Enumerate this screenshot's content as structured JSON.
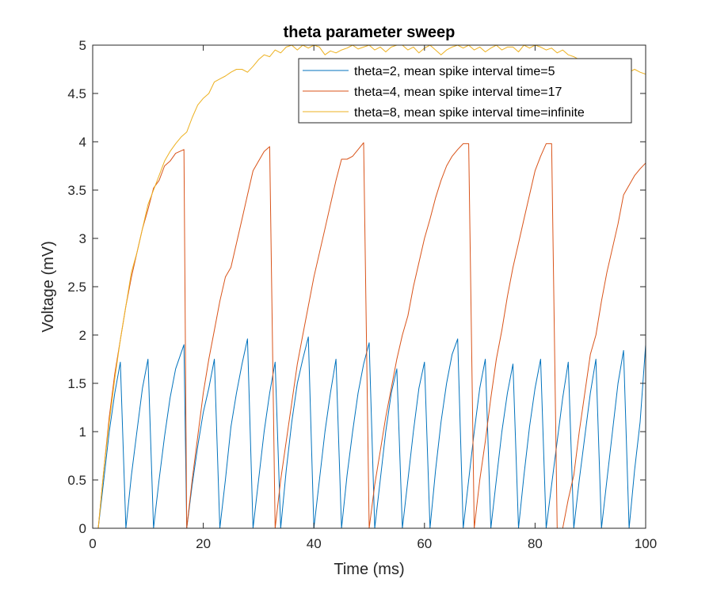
{
  "chart_data": {
    "type": "line",
    "title": "theta parameter sweep",
    "xlabel": "Time (ms)",
    "ylabel": "Voltage (mV)",
    "xlim": [
      0,
      100
    ],
    "ylim": [
      0,
      5
    ],
    "xticks": [
      0,
      20,
      40,
      60,
      80,
      100
    ],
    "yticks": [
      0,
      0.5,
      1,
      1.5,
      2,
      2.5,
      3,
      3.5,
      4,
      4.5,
      5
    ],
    "grid": false,
    "legend_position": "top-right",
    "series": [
      {
        "name": "theta=2, mean spike interval time=5",
        "color": "#0072BD",
        "points": [
          [
            1,
            0
          ],
          [
            2,
            0.5
          ],
          [
            3,
            1.0
          ],
          [
            4,
            1.4
          ],
          [
            5,
            1.72
          ],
          [
            6,
            0
          ],
          [
            7,
            0.55
          ],
          [
            8,
            1.0
          ],
          [
            9,
            1.45
          ],
          [
            10,
            1.75
          ],
          [
            11,
            0
          ],
          [
            12,
            0.5
          ],
          [
            13,
            0.95
          ],
          [
            14,
            1.35
          ],
          [
            15,
            1.65
          ],
          [
            16.5,
            1.9
          ],
          [
            17,
            0
          ],
          [
            18,
            0.45
          ],
          [
            19,
            0.85
          ],
          [
            20,
            1.2
          ],
          [
            21,
            1.45
          ],
          [
            22,
            1.75
          ],
          [
            23,
            0
          ],
          [
            24,
            0.5
          ],
          [
            25,
            1.05
          ],
          [
            26,
            1.4
          ],
          [
            27,
            1.7
          ],
          [
            28,
            1.96
          ],
          [
            29,
            0
          ],
          [
            30,
            0.5
          ],
          [
            31,
            1.0
          ],
          [
            32,
            1.4
          ],
          [
            33,
            1.72
          ],
          [
            34,
            0
          ],
          [
            35,
            0.6
          ],
          [
            36,
            1.1
          ],
          [
            37,
            1.5
          ],
          [
            38,
            1.75
          ],
          [
            39,
            1.98
          ],
          [
            40,
            0
          ],
          [
            41,
            0.5
          ],
          [
            42,
            1.0
          ],
          [
            43,
            1.4
          ],
          [
            44,
            1.75
          ],
          [
            45,
            0
          ],
          [
            46,
            0.55
          ],
          [
            47,
            1.0
          ],
          [
            48,
            1.4
          ],
          [
            49,
            1.7
          ],
          [
            50,
            1.92
          ],
          [
            51,
            0
          ],
          [
            52,
            0.5
          ],
          [
            53,
            1.0
          ],
          [
            54,
            1.4
          ],
          [
            55,
            1.65
          ],
          [
            56,
            0
          ],
          [
            57,
            0.5
          ],
          [
            58,
            1.0
          ],
          [
            59,
            1.45
          ],
          [
            60,
            1.72
          ],
          [
            61,
            0
          ],
          [
            62,
            0.6
          ],
          [
            63,
            1.1
          ],
          [
            64,
            1.5
          ],
          [
            65,
            1.8
          ],
          [
            66,
            1.96
          ],
          [
            67,
            0
          ],
          [
            68,
            0.5
          ],
          [
            69,
            1.0
          ],
          [
            70,
            1.45
          ],
          [
            71,
            1.75
          ],
          [
            72,
            0
          ],
          [
            73,
            0.5
          ],
          [
            74,
            1.0
          ],
          [
            75,
            1.4
          ],
          [
            76,
            1.7
          ],
          [
            77,
            0
          ],
          [
            78,
            0.55
          ],
          [
            79,
            1.05
          ],
          [
            80,
            1.45
          ],
          [
            81,
            1.75
          ],
          [
            82,
            0
          ],
          [
            83,
            0.45
          ],
          [
            84,
            0.9
          ],
          [
            85,
            1.35
          ],
          [
            86,
            1.72
          ],
          [
            87,
            0
          ],
          [
            88,
            0.5
          ],
          [
            89,
            0.95
          ],
          [
            90,
            1.4
          ],
          [
            91,
            1.75
          ],
          [
            92,
            0
          ],
          [
            93,
            0.5
          ],
          [
            94,
            1.0
          ],
          [
            95,
            1.5
          ],
          [
            96,
            1.84
          ],
          [
            97,
            0
          ],
          [
            98,
            0.6
          ],
          [
            99,
            1.1
          ],
          [
            99.5,
            1.5
          ],
          [
            100,
            1.9
          ]
        ]
      },
      {
        "name": "theta=4, mean spike interval time=17",
        "color": "#D95319",
        "points": [
          [
            1,
            0
          ],
          [
            2,
            0.6
          ],
          [
            3,
            1.15
          ],
          [
            4,
            1.6
          ],
          [
            5,
            1.95
          ],
          [
            6,
            2.3
          ],
          [
            7,
            2.6
          ],
          [
            8,
            2.85
          ],
          [
            9,
            3.1
          ],
          [
            10,
            3.3
          ],
          [
            11,
            3.52
          ],
          [
            12,
            3.6
          ],
          [
            13,
            3.75
          ],
          [
            14,
            3.8
          ],
          [
            15,
            3.88
          ],
          [
            16.5,
            3.92
          ],
          [
            17,
            0
          ],
          [
            18,
            0.5
          ],
          [
            19,
            0.95
          ],
          [
            20,
            1.4
          ],
          [
            21,
            1.75
          ],
          [
            22,
            2.05
          ],
          [
            23,
            2.35
          ],
          [
            24,
            2.6
          ],
          [
            25,
            2.7
          ],
          [
            26,
            2.95
          ],
          [
            27,
            3.2
          ],
          [
            28,
            3.45
          ],
          [
            29,
            3.7
          ],
          [
            30,
            3.8
          ],
          [
            31,
            3.9
          ],
          [
            32,
            3.95
          ],
          [
            33,
            0
          ],
          [
            34,
            0.5
          ],
          [
            35,
            0.9
          ],
          [
            36,
            1.3
          ],
          [
            37,
            1.7
          ],
          [
            38,
            2.0
          ],
          [
            39,
            2.3
          ],
          [
            40,
            2.6
          ],
          [
            41,
            2.85
          ],
          [
            42,
            3.1
          ],
          [
            43,
            3.35
          ],
          [
            44,
            3.6
          ],
          [
            45,
            3.82
          ],
          [
            46,
            3.82
          ],
          [
            47,
            3.85
          ],
          [
            48,
            3.92
          ],
          [
            49,
            3.99
          ],
          [
            50,
            0
          ],
          [
            51,
            0.45
          ],
          [
            52,
            0.8
          ],
          [
            53,
            1.15
          ],
          [
            54,
            1.45
          ],
          [
            55,
            1.75
          ],
          [
            56,
            2.0
          ],
          [
            57,
            2.2
          ],
          [
            58,
            2.5
          ],
          [
            59,
            2.75
          ],
          [
            60,
            3.0
          ],
          [
            61,
            3.2
          ],
          [
            62,
            3.42
          ],
          [
            63,
            3.6
          ],
          [
            64,
            3.75
          ],
          [
            65,
            3.85
          ],
          [
            66,
            3.92
          ],
          [
            67,
            3.98
          ],
          [
            68,
            3.98
          ],
          [
            69,
            0
          ],
          [
            70,
            0.5
          ],
          [
            71,
            0.9
          ],
          [
            72,
            1.35
          ],
          [
            73,
            1.75
          ],
          [
            74,
            2.05
          ],
          [
            75,
            2.4
          ],
          [
            76,
            2.7
          ],
          [
            77,
            2.95
          ],
          [
            78,
            3.2
          ],
          [
            79,
            3.45
          ],
          [
            80,
            3.7
          ],
          [
            81,
            3.85
          ],
          [
            82,
            3.98
          ],
          [
            83,
            3.98
          ],
          [
            84,
            0
          ],
          [
            85,
            0
          ],
          [
            86,
            0.3
          ],
          [
            87,
            0.55
          ],
          [
            88,
            1.0
          ],
          [
            89,
            1.4
          ],
          [
            90,
            1.8
          ],
          [
            91,
            2.0
          ],
          [
            92,
            2.35
          ],
          [
            93,
            2.65
          ],
          [
            94,
            2.9
          ],
          [
            95,
            3.15
          ],
          [
            96,
            3.45
          ],
          [
            97,
            3.55
          ],
          [
            98,
            3.65
          ],
          [
            99,
            3.72
          ],
          [
            100,
            3.78
          ]
        ]
      },
      {
        "name": "theta=8, mean spike interval time=infinite",
        "color": "#EDB120",
        "points": [
          [
            1,
            0
          ],
          [
            2,
            0.6
          ],
          [
            3,
            1.1
          ],
          [
            4,
            1.55
          ],
          [
            5,
            1.95
          ],
          [
            6,
            2.3
          ],
          [
            7,
            2.65
          ],
          [
            8,
            2.85
          ],
          [
            9,
            3.1
          ],
          [
            10,
            3.35
          ],
          [
            11,
            3.5
          ],
          [
            12,
            3.65
          ],
          [
            13,
            3.8
          ],
          [
            14,
            3.9
          ],
          [
            15,
            3.98
          ],
          [
            16,
            4.05
          ],
          [
            17,
            4.1
          ],
          [
            18,
            4.25
          ],
          [
            19,
            4.38
          ],
          [
            20,
            4.45
          ],
          [
            21,
            4.5
          ],
          [
            22,
            4.62
          ],
          [
            23,
            4.65
          ],
          [
            24,
            4.68
          ],
          [
            25,
            4.72
          ],
          [
            26,
            4.75
          ],
          [
            27,
            4.75
          ],
          [
            28,
            4.72
          ],
          [
            29,
            4.78
          ],
          [
            30,
            4.85
          ],
          [
            31,
            4.9
          ],
          [
            32,
            4.88
          ],
          [
            33,
            4.95
          ],
          [
            34,
            4.92
          ],
          [
            35,
            4.98
          ],
          [
            36,
            5.0
          ],
          [
            37,
            4.95
          ],
          [
            38,
            5.0
          ],
          [
            39,
            4.97
          ],
          [
            40,
            5.0
          ],
          [
            41,
            4.98
          ],
          [
            42,
            4.9
          ],
          [
            43,
            4.94
          ],
          [
            44,
            4.92
          ],
          [
            45,
            4.95
          ],
          [
            46,
            4.97
          ],
          [
            47,
            5.0
          ],
          [
            48,
            4.96
          ],
          [
            49,
            4.98
          ],
          [
            50,
            5.0
          ],
          [
            51,
            4.95
          ],
          [
            52,
            4.98
          ],
          [
            53,
            4.93
          ],
          [
            54,
            4.98
          ],
          [
            55,
            5.0
          ],
          [
            56,
            5.0
          ],
          [
            57,
            4.95
          ],
          [
            58,
            4.98
          ],
          [
            59,
            4.92
          ],
          [
            60,
            4.97
          ],
          [
            61,
            5.0
          ],
          [
            62,
            4.95
          ],
          [
            63,
            4.9
          ],
          [
            64,
            4.95
          ],
          [
            65,
            4.98
          ],
          [
            66,
            5.0
          ],
          [
            67,
            4.97
          ],
          [
            68,
            5.0
          ],
          [
            69,
            4.95
          ],
          [
            70,
            4.98
          ],
          [
            71,
            4.93
          ],
          [
            72,
            4.97
          ],
          [
            73,
            5.0
          ],
          [
            74,
            4.95
          ],
          [
            75,
            4.98
          ],
          [
            76,
            4.98
          ],
          [
            77,
            4.93
          ],
          [
            78,
            5.0
          ],
          [
            79,
            4.97
          ],
          [
            80,
            5.0
          ],
          [
            81,
            4.98
          ],
          [
            82,
            4.95
          ],
          [
            83,
            4.97
          ],
          [
            84,
            4.92
          ],
          [
            85,
            4.95
          ],
          [
            86,
            4.9
          ],
          [
            87,
            4.88
          ],
          [
            88,
            4.85
          ],
          [
            89,
            4.82
          ],
          [
            90,
            4.85
          ],
          [
            91,
            4.8
          ],
          [
            92,
            4.82
          ],
          [
            93,
            4.78
          ],
          [
            94,
            4.8
          ],
          [
            95,
            4.75
          ],
          [
            96,
            4.78
          ],
          [
            97,
            4.72
          ],
          [
            98,
            4.75
          ],
          [
            99,
            4.72
          ],
          [
            100,
            4.7
          ]
        ]
      }
    ]
  }
}
